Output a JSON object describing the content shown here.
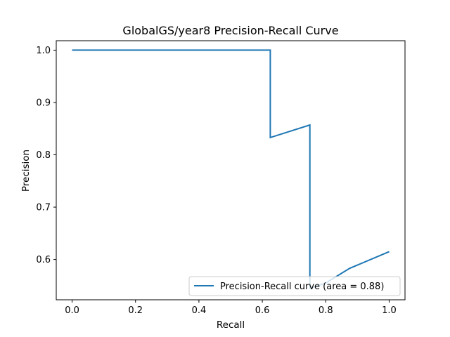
{
  "chart_data": {
    "type": "line",
    "title": "GlobalGS/year8 Precision-Recall Curve",
    "xlabel": "Recall",
    "ylabel": "Precision",
    "xlim": [
      -0.05,
      1.05
    ],
    "ylim": [
      0.523,
      1.018
    ],
    "xticks": [
      0.0,
      0.2,
      0.4,
      0.6,
      0.8,
      1.0
    ],
    "xtick_labels": [
      "0.0",
      "0.2",
      "0.4",
      "0.6",
      "0.8",
      "1.0"
    ],
    "yticks": [
      0.6,
      0.7,
      0.8,
      0.9,
      1.0
    ],
    "ytick_labels": [
      "0.6",
      "0.7",
      "0.8",
      "0.9",
      "1.0"
    ],
    "grid": false,
    "legend_position": "lower-right",
    "series": [
      {
        "name": "Precision-Recall curve (area = 0.88)",
        "color": "#1f77b4",
        "x": [
          0.0,
          0.125,
          0.25,
          0.375,
          0.5,
          0.625,
          0.625,
          0.75,
          0.75,
          0.8,
          0.875,
          1.0
        ],
        "y": [
          1.0,
          1.0,
          1.0,
          1.0,
          1.0,
          1.0,
          0.833,
          0.857,
          0.545,
          0.555,
          0.583,
          0.615
        ]
      }
    ]
  }
}
